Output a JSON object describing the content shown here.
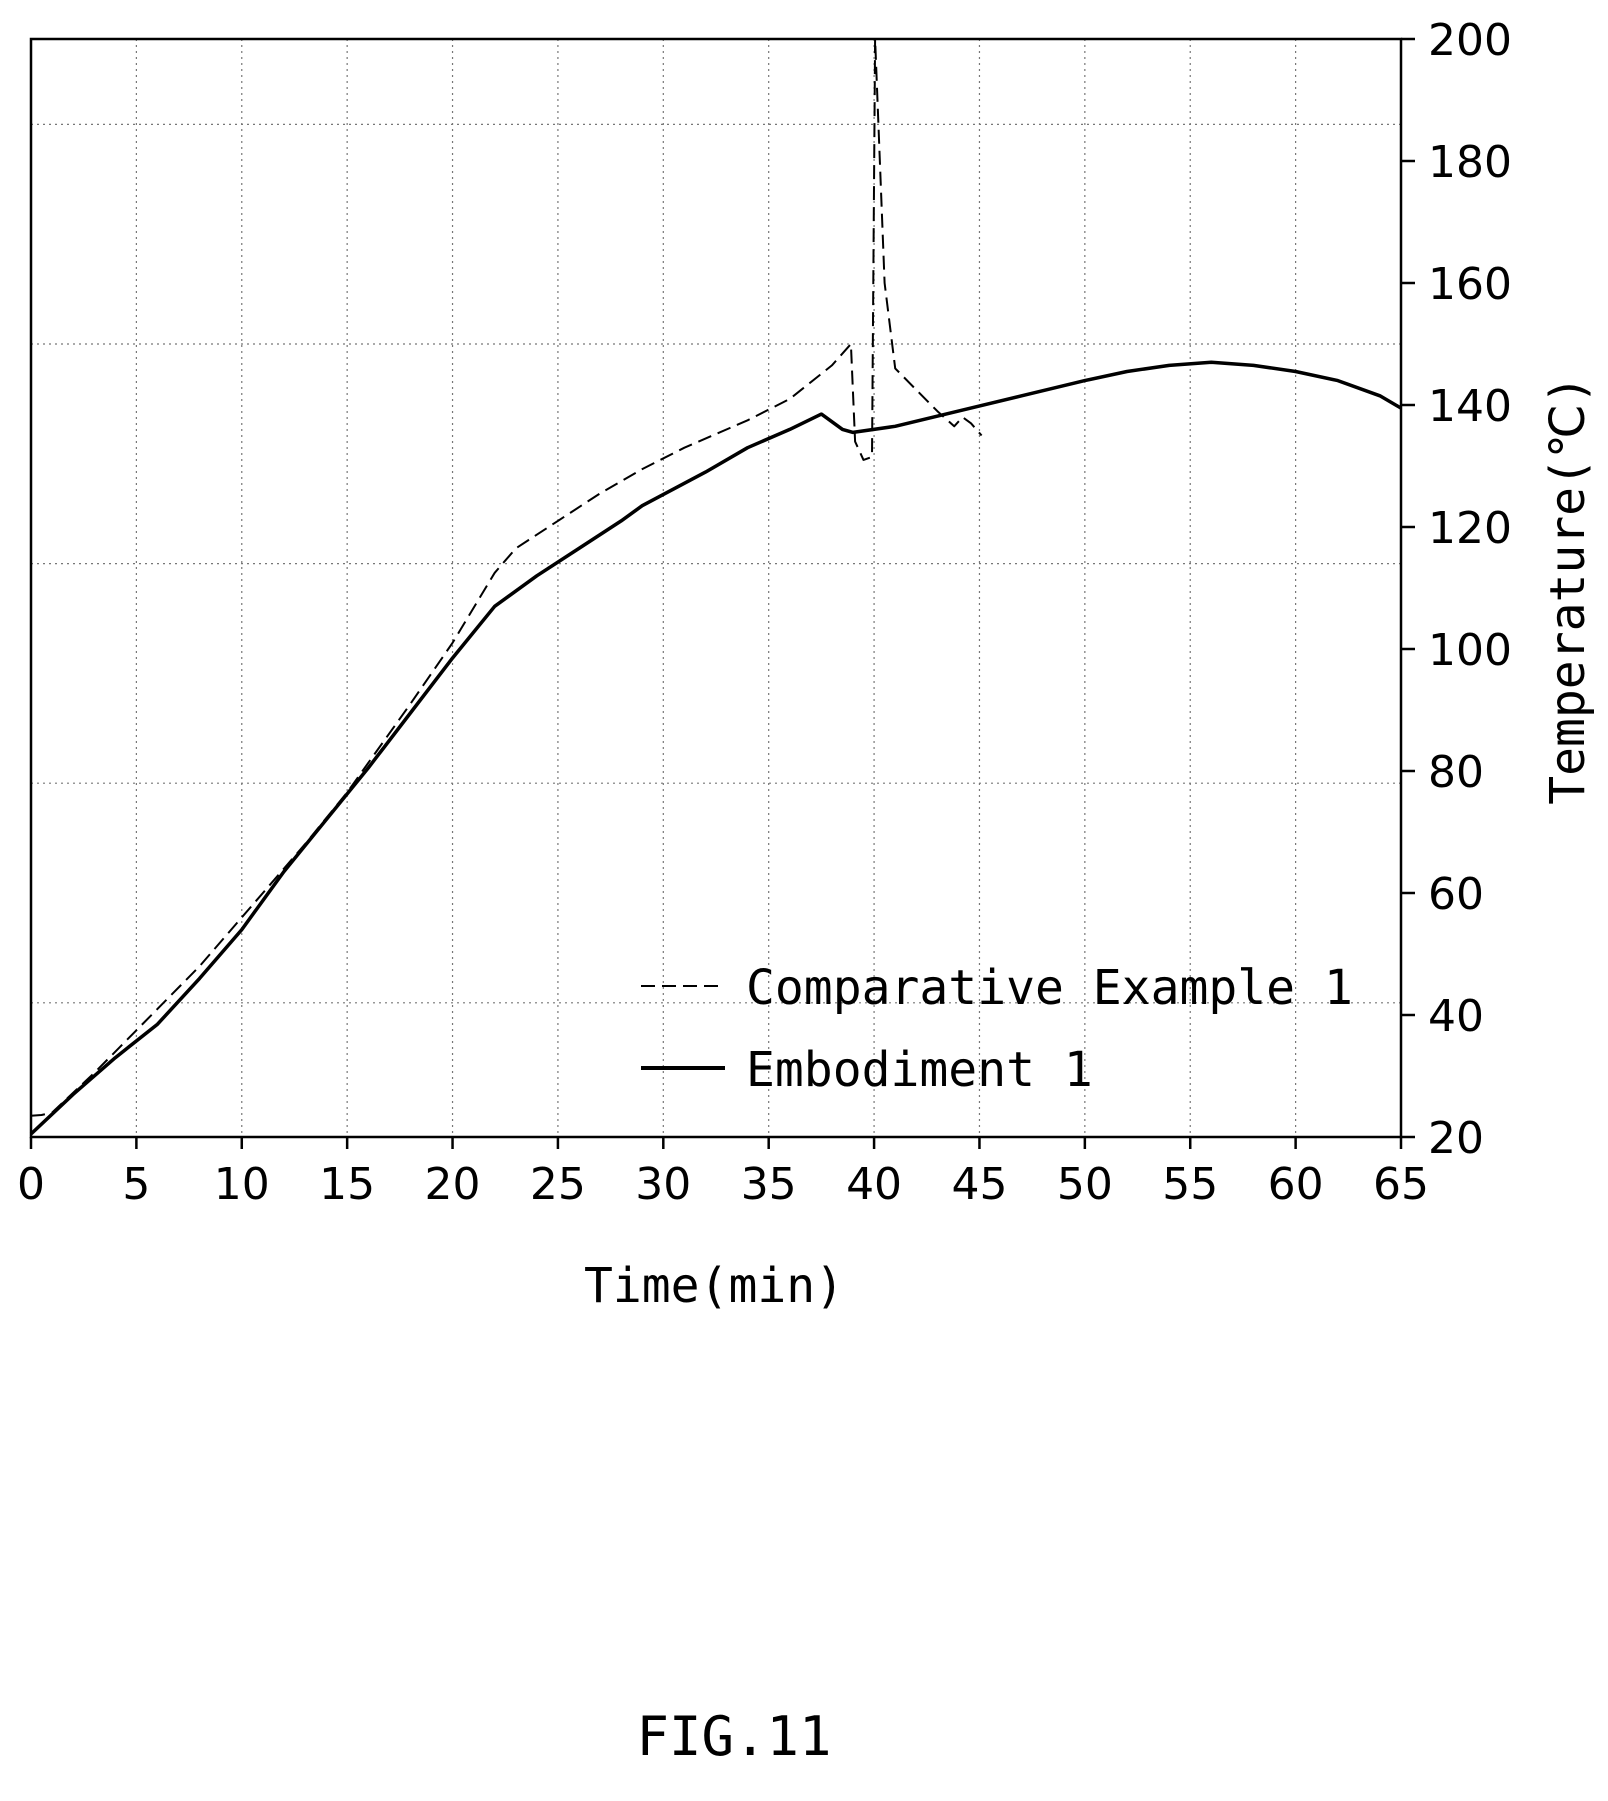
{
  "chart_data": {
    "type": "line",
    "xlabel": "Time(min)",
    "ylabel": "Temperature(℃)",
    "x_ticks": [
      "0",
      "5",
      "10",
      "15",
      "20",
      "25",
      "30",
      "35",
      "40",
      "45",
      "50",
      "55",
      "60",
      "65"
    ],
    "y_ticks": [
      "20",
      "40",
      "60",
      "80",
      "100",
      "120",
      "140",
      "160",
      "180",
      "200"
    ],
    "xlim": [
      0,
      65
    ],
    "ylim": [
      20,
      200
    ],
    "y_axis_side": "right",
    "grid": "dotted",
    "legend_position": "lower-right",
    "series": [
      {
        "name": "Comparative Example 1",
        "style": "dashed",
        "color": "#000000",
        "points": [
          [
            0,
            23.5
          ],
          [
            0.5,
            23.6
          ],
          [
            1,
            24
          ],
          [
            3,
            30.5
          ],
          [
            5,
            37.5
          ],
          [
            8,
            48
          ],
          [
            10,
            56
          ],
          [
            13,
            68
          ],
          [
            15,
            76.5
          ],
          [
            18,
            91
          ],
          [
            20,
            101
          ],
          [
            22,
            112.5
          ],
          [
            23,
            116.5
          ],
          [
            25,
            121
          ],
          [
            27,
            125.5
          ],
          [
            29,
            129.5
          ],
          [
            31,
            133
          ],
          [
            34,
            137.5
          ],
          [
            36,
            141
          ],
          [
            38,
            146.5
          ],
          [
            38.9,
            150
          ],
          [
            39.1,
            134
          ],
          [
            39.5,
            131
          ],
          [
            39.9,
            131.5
          ],
          [
            40.05,
            200
          ],
          [
            40.5,
            160
          ],
          [
            41,
            146
          ],
          [
            42,
            142.5
          ],
          [
            43,
            139
          ],
          [
            43.8,
            136.5
          ],
          [
            44.2,
            138
          ],
          [
            44.6,
            137
          ],
          [
            45.1,
            135
          ]
        ]
      },
      {
        "name": "Embodiment 1",
        "style": "solid",
        "color": "#000000",
        "points": [
          [
            0,
            20.5
          ],
          [
            2,
            27
          ],
          [
            4,
            33
          ],
          [
            6,
            38.5
          ],
          [
            8,
            46
          ],
          [
            10,
            54
          ],
          [
            12,
            63.5
          ],
          [
            14,
            72
          ],
          [
            16,
            80.5
          ],
          [
            18,
            89.5
          ],
          [
            20,
            98.5
          ],
          [
            22,
            107
          ],
          [
            24,
            112
          ],
          [
            26,
            116.5
          ],
          [
            28,
            121
          ],
          [
            29,
            123.5
          ],
          [
            32,
            129
          ],
          [
            34,
            133
          ],
          [
            36,
            136
          ],
          [
            37.5,
            138.5
          ],
          [
            38.5,
            136
          ],
          [
            39,
            135.5
          ],
          [
            41,
            136.5
          ],
          [
            44,
            139
          ],
          [
            47,
            141.5
          ],
          [
            50,
            144
          ],
          [
            52,
            145.5
          ],
          [
            54,
            146.5
          ],
          [
            56,
            147
          ],
          [
            58,
            146.5
          ],
          [
            60,
            145.5
          ],
          [
            62,
            144
          ],
          [
            64,
            141.5
          ],
          [
            65,
            139.5
          ]
        ]
      }
    ]
  },
  "figure_caption": "FIG.11"
}
